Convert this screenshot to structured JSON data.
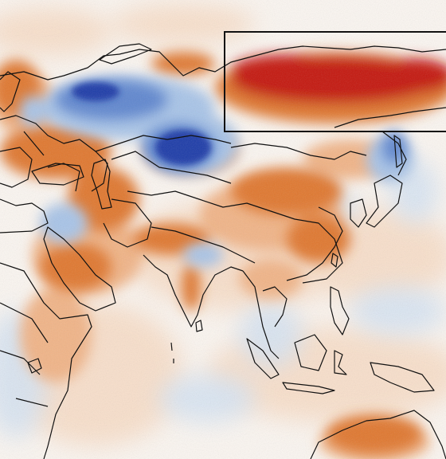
{
  "map": {
    "kind": "temperature-anomaly",
    "region": "Eurasia",
    "palette": {
      "background": "#fbf6f1",
      "ocean_tint": "#f4f2f5",
      "strong_warm": "#c4120c",
      "warm": "#e0772f",
      "mild_warm": "#f1b487",
      "faint_warm": "#f8dcc5",
      "faint_cool": "#d7e4f3",
      "mild_cool": "#a8c4e8",
      "cool": "#5f86cf",
      "strong_cool": "#1c3aa8",
      "borders": "#111111",
      "highlight_box": "#111111"
    },
    "highlight_box": {
      "present": true,
      "label": ""
    },
    "labels": []
  }
}
